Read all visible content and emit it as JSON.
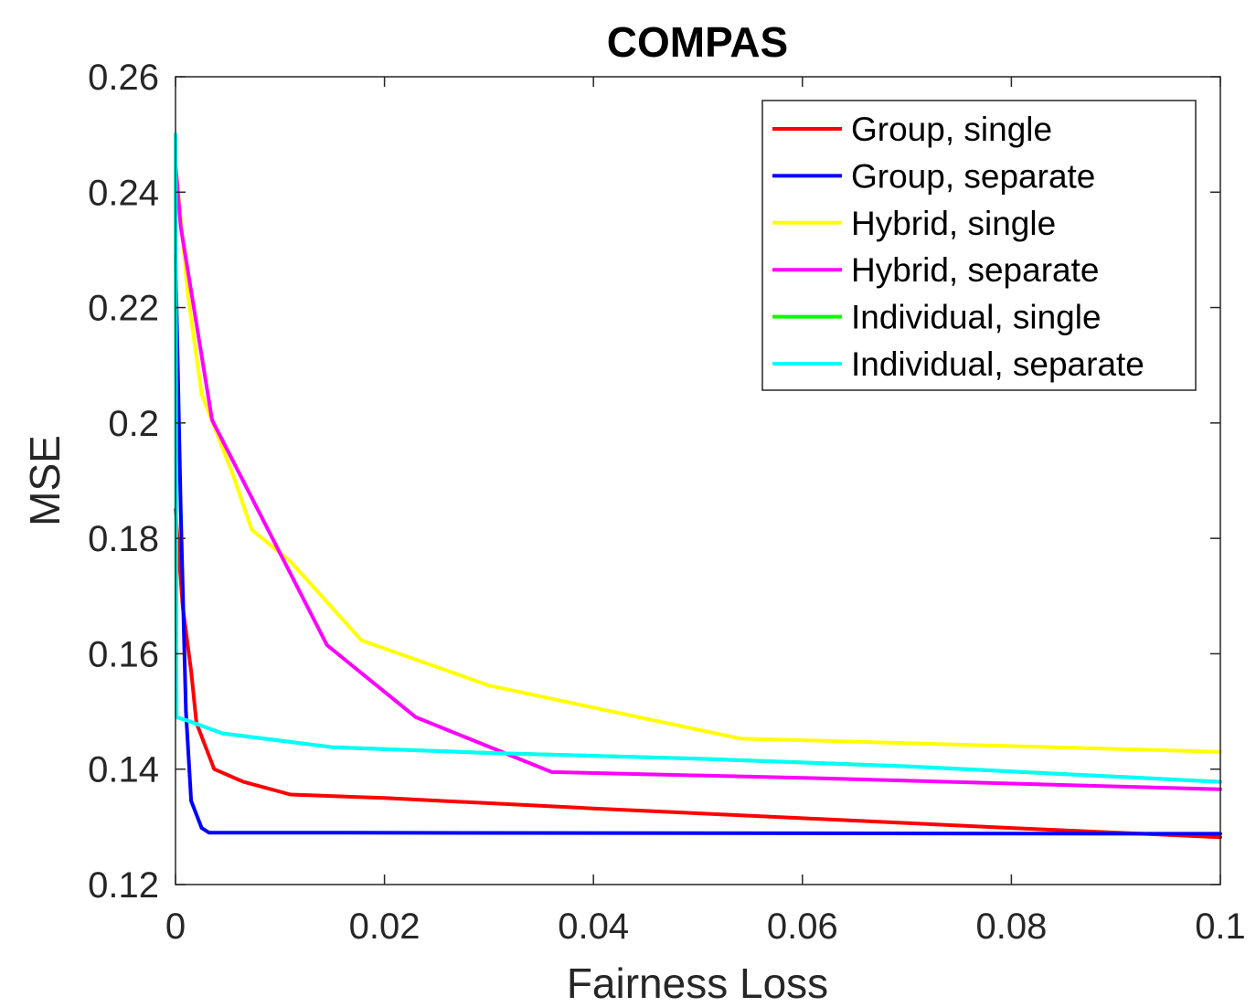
{
  "chart_data": {
    "type": "line",
    "title": "COMPAS",
    "xlabel": "Fairness Loss",
    "ylabel": "MSE",
    "xlim": [
      0,
      0.1
    ],
    "ylim": [
      0.12,
      0.26
    ],
    "xticks": [
      0,
      0.02,
      0.04,
      0.06,
      0.08,
      0.1
    ],
    "xtick_labels": [
      "0",
      "0.02",
      "0.04",
      "0.06",
      "0.08",
      "0.1"
    ],
    "yticks": [
      0.12,
      0.14,
      0.16,
      0.18,
      0.2,
      0.22,
      0.24,
      0.26
    ],
    "ytick_labels": [
      "0.12",
      "0.14",
      "0.16",
      "0.18",
      "0.2",
      "0.22",
      "0.24",
      "0.26"
    ],
    "grid": false,
    "legend_position": "top-right",
    "series": [
      {
        "name": "Group, single",
        "color": "#ff0000",
        "points": [
          [
            0,
            0.185
          ],
          [
            0.0007,
            0.168
          ],
          [
            0.0015,
            0.157
          ],
          [
            0.002,
            0.148
          ],
          [
            0.0037,
            0.14
          ],
          [
            0.0065,
            0.1378
          ],
          [
            0.011,
            0.1356
          ],
          [
            0.02,
            0.135
          ],
          [
            0.04,
            0.1332
          ],
          [
            0.06,
            0.1315
          ],
          [
            0.08,
            0.1298
          ],
          [
            0.1,
            0.1282
          ]
        ]
      },
      {
        "name": "Group, separate",
        "color": "#0000ff",
        "points": [
          [
            0,
            0.229
          ],
          [
            0.0005,
            0.185
          ],
          [
            0.001,
            0.15
          ],
          [
            0.0015,
            0.1345
          ],
          [
            0.0025,
            0.1298
          ],
          [
            0.0032,
            0.129
          ],
          [
            0.01,
            0.129
          ],
          [
            0.05,
            0.1289
          ],
          [
            0.1,
            0.1288
          ]
        ]
      },
      {
        "name": "Hybrid, single",
        "color": "#ffff00",
        "points": [
          [
            0,
            0.245
          ],
          [
            0.0012,
            0.222
          ],
          [
            0.0025,
            0.205
          ],
          [
            0.0055,
            0.191
          ],
          [
            0.0073,
            0.1815
          ],
          [
            0.011,
            0.176
          ],
          [
            0.0178,
            0.1623
          ],
          [
            0.03,
            0.1545
          ],
          [
            0.054,
            0.1453
          ],
          [
            0.1,
            0.143
          ]
        ]
      },
      {
        "name": "Hybrid, separate",
        "color": "#ff00ff",
        "points": [
          [
            0,
            0.245
          ],
          [
            0.0005,
            0.234
          ],
          [
            0.0035,
            0.2005
          ],
          [
            0.0145,
            0.1615
          ],
          [
            0.023,
            0.149
          ],
          [
            0.036,
            0.1395
          ],
          [
            0.06,
            0.1385
          ],
          [
            0.1,
            0.1365
          ]
        ]
      },
      {
        "name": "Individual, single",
        "color": "#00ff00",
        "points": [
          [
            0,
            0.249
          ],
          [
            0.0001,
            0.149
          ],
          [
            0.001,
            0.1485
          ],
          [
            0.0045,
            0.1462
          ],
          [
            0.015,
            0.1438
          ],
          [
            0.03,
            0.1428
          ],
          [
            0.05,
            0.1418
          ],
          [
            0.07,
            0.1405
          ],
          [
            0.1,
            0.1378
          ]
        ]
      },
      {
        "name": "Individual, separate",
        "color": "#00ffff",
        "points": [
          [
            0,
            0.25
          ],
          [
            0.0001,
            0.149
          ],
          [
            0.001,
            0.1485
          ],
          [
            0.0045,
            0.1462
          ],
          [
            0.015,
            0.1438
          ],
          [
            0.03,
            0.1428
          ],
          [
            0.05,
            0.1418
          ],
          [
            0.07,
            0.1405
          ],
          [
            0.1,
            0.1378
          ]
        ]
      }
    ]
  }
}
